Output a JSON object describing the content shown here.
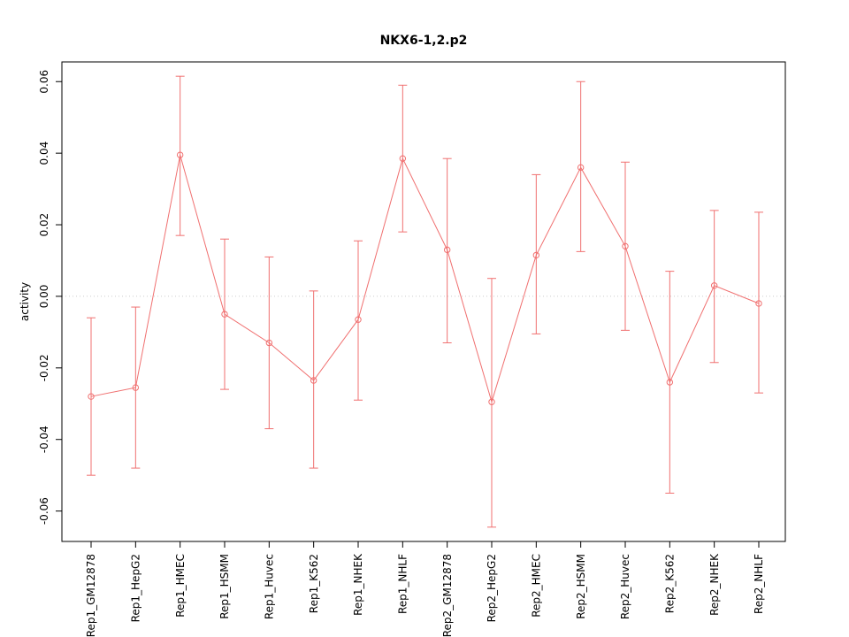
{
  "title": "NKX6-1,2.p2",
  "chart_data": {
    "type": "line",
    "title": "NKX6-1,2.p2",
    "xlabel": "",
    "ylabel": "activity",
    "ylim": [
      -0.0685,
      0.0655
    ],
    "yticks": [
      -0.06,
      -0.04,
      -0.02,
      0.0,
      0.02,
      0.04,
      0.06
    ],
    "ytick_labels": [
      "-0.06",
      "-0.04",
      "-0.02",
      "0.00",
      "0.02",
      "0.04",
      "0.06"
    ],
    "zero_line": 0.0,
    "grid": false,
    "legend_position": "none",
    "series_color": "#f07070",
    "zero_line_color": "#cccccc",
    "categories": [
      "Rep1_GM12878",
      "Rep1_HepG2",
      "Rep1_HMEC",
      "Rep1_HSMM",
      "Rep1_Huvec",
      "Rep1_K562",
      "Rep1_NHEK",
      "Rep1_NHLF",
      "Rep2_GM12878",
      "Rep2_HepG2",
      "Rep2_HMEC",
      "Rep2_HSMM",
      "Rep2_Huvec",
      "Rep2_K562",
      "Rep2_NHEK",
      "Rep2_NHLF"
    ],
    "series": [
      {
        "name": "activity",
        "values": [
          -0.028,
          -0.0255,
          0.0395,
          -0.005,
          -0.013,
          -0.0235,
          -0.0065,
          0.0385,
          0.013,
          -0.0295,
          0.0115,
          0.036,
          0.014,
          -0.024,
          0.003,
          -0.002
        ],
        "lower": [
          -0.05,
          -0.048,
          0.017,
          -0.026,
          -0.037,
          -0.048,
          -0.029,
          0.018,
          -0.013,
          -0.0645,
          -0.0105,
          0.0125,
          -0.0095,
          -0.055,
          -0.0185,
          -0.027
        ],
        "upper": [
          -0.006,
          -0.003,
          0.0615,
          0.016,
          0.011,
          0.0015,
          0.0155,
          0.059,
          0.0385,
          0.005,
          0.034,
          0.06,
          0.0375,
          0.007,
          0.024,
          0.0235
        ]
      }
    ]
  }
}
